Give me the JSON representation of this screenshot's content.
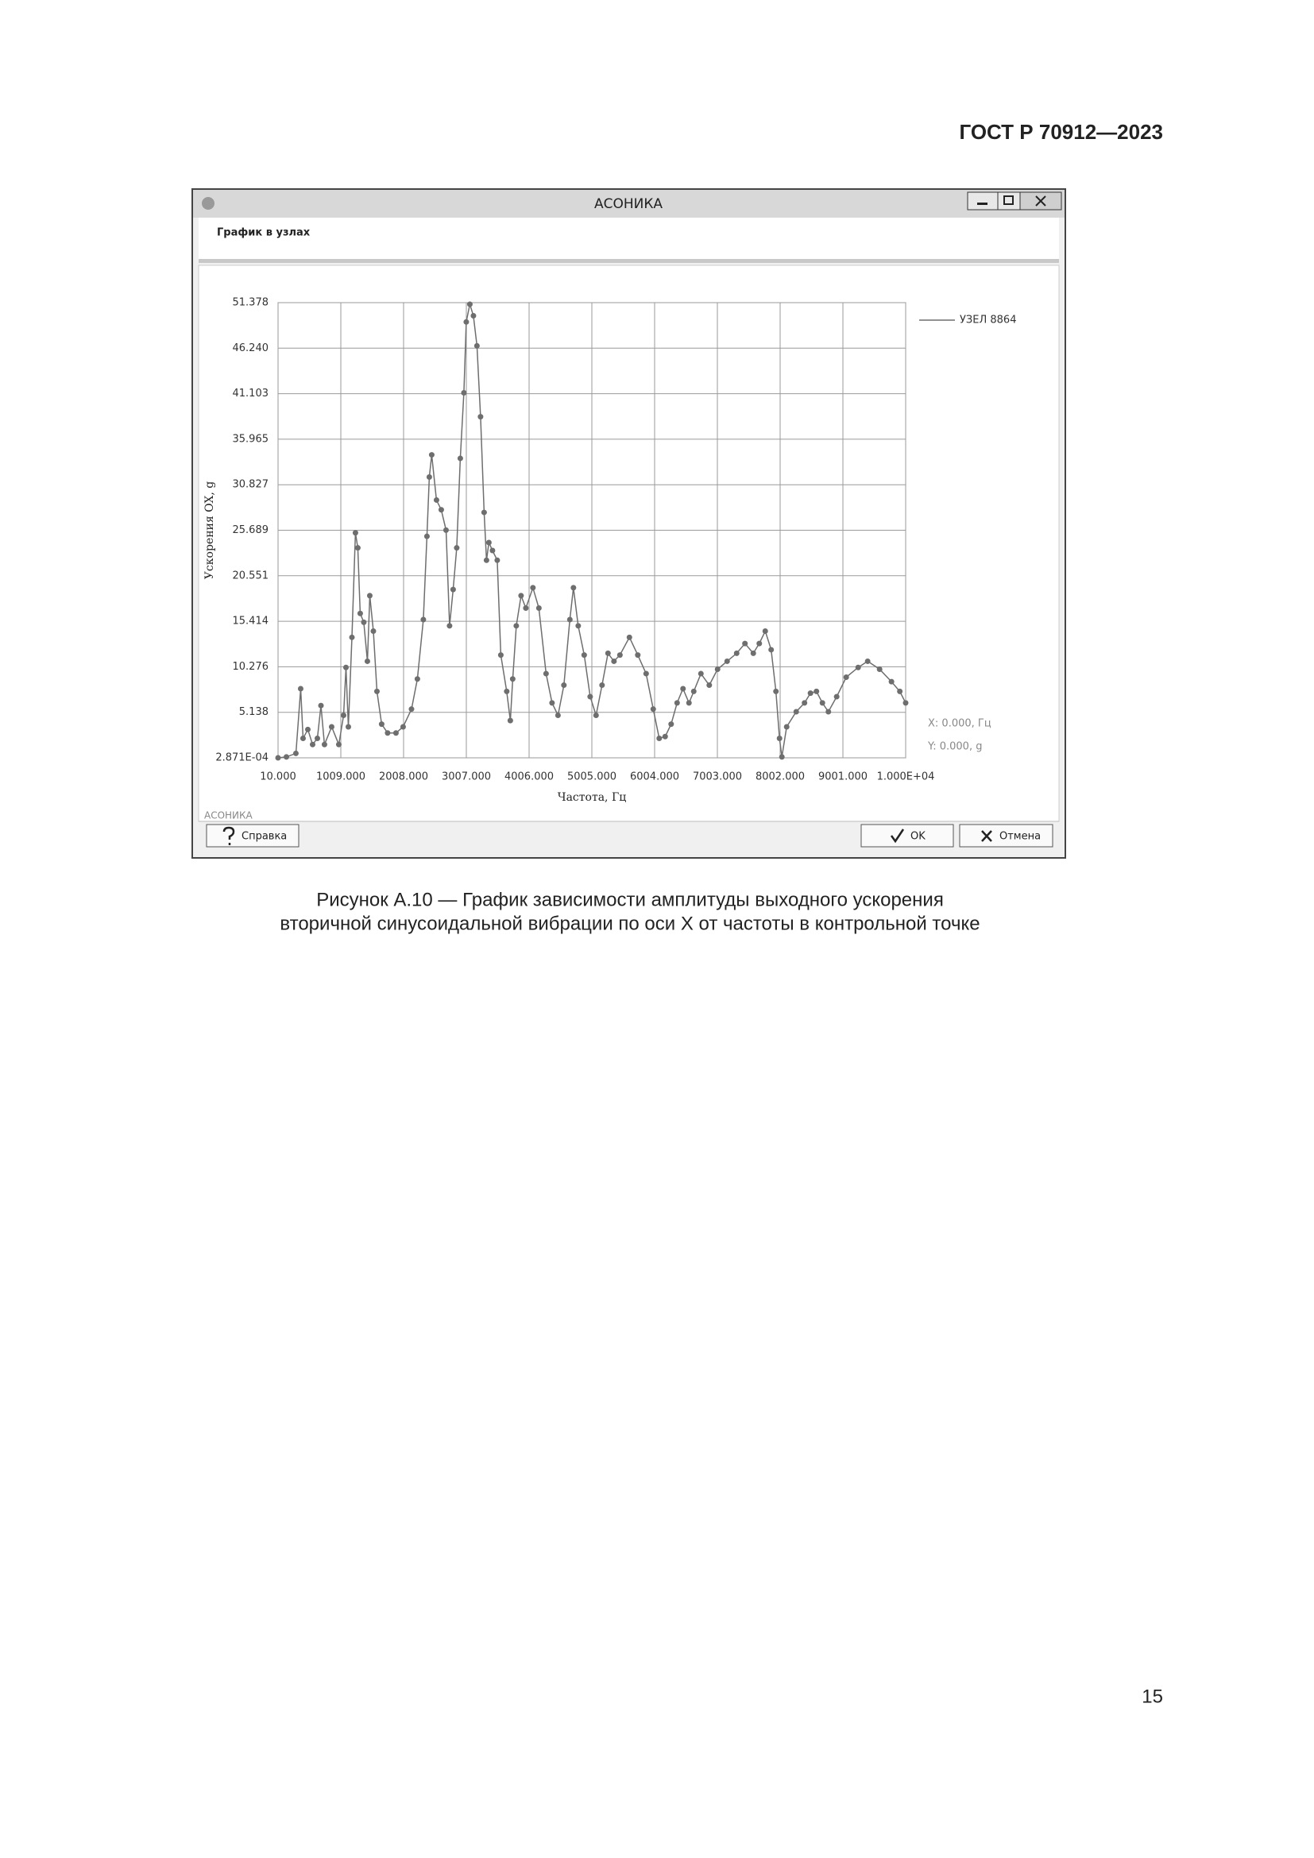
{
  "header": {
    "code": "ГОСТ Р 70912—2023"
  },
  "window": {
    "title": "АСОНИКА",
    "panel_title": "График в узлах",
    "status": "АСОНИКА",
    "buttons": {
      "help": "Справка",
      "ok": "OK",
      "cancel": "Отмена"
    },
    "cursor": {
      "x": "X: 0.000, Гц",
      "y": "Y: 0.000, g"
    }
  },
  "chart_data": {
    "type": "line",
    "x_label": "Частота, Гц",
    "y_label": "Ускорения OX, g",
    "xlim": [
      10,
      10000
    ],
    "ylim": [
      0.0002871,
      51.378
    ],
    "xticks": [
      {
        "value": 10,
        "label": "10.000"
      },
      {
        "value": 1009,
        "label": "1009.000"
      },
      {
        "value": 2008,
        "label": "2008.000"
      },
      {
        "value": 3007,
        "label": "3007.000"
      },
      {
        "value": 4006,
        "label": "4006.000"
      },
      {
        "value": 5005,
        "label": "5005.000"
      },
      {
        "value": 6004,
        "label": "6004.000"
      },
      {
        "value": 7003,
        "label": "7003.000"
      },
      {
        "value": 8002,
        "label": "8002.000"
      },
      {
        "value": 9001,
        "label": "9001.000"
      },
      {
        "value": 10000,
        "label": "1.000E+04"
      }
    ],
    "yticks": [
      {
        "value": 0.0002871,
        "label": "2.871E-04"
      },
      5.138,
      10.276,
      15.414,
      20.551,
      25.689,
      30.827,
      35.965,
      41.103,
      {
        "value": 46.24,
        "label": "46.240"
      },
      51.378
    ],
    "grid": true,
    "x": [
      10,
      143,
      294,
      370,
      408,
      484,
      560,
      636,
      693,
      749,
      863,
      977,
      1053,
      1091,
      1129,
      1186,
      1242,
      1280,
      1318,
      1375,
      1432,
      1470,
      1527,
      1584,
      1659,
      1754,
      1887,
      2001,
      2134,
      2228,
      2323,
      2380,
      2418,
      2456,
      2532,
      2608,
      2684,
      2740,
      2797,
      2854,
      2911,
      2968,
      3006,
      3063,
      3120,
      3176,
      3233,
      3290,
      3328,
      3366,
      3423,
      3499,
      3556,
      3650,
      3707,
      3745,
      3802,
      3878,
      3954,
      4067,
      4162,
      4276,
      4371,
      4466,
      4560,
      4655,
      4712,
      4788,
      4883,
      4978,
      5072,
      5167,
      5262,
      5357,
      5452,
      5603,
      5736,
      5869,
      5982,
      6077,
      6172,
      6267,
      6362,
      6456,
      6551,
      6627,
      6741,
      6874,
      7006,
      7158,
      7310,
      7442,
      7575,
      7670,
      7765,
      7859,
      7935,
      7992,
      8030,
      8106,
      8258,
      8390,
      8485,
      8580,
      8675,
      8770,
      8902,
      9054,
      9244,
      9395,
      9585,
      9774,
      9907,
      10000
    ],
    "series": [
      {
        "name": "УЗЕЛ 8864",
        "color": "#6e6e6e",
        "values": [
          0.0003,
          0.1,
          0.5,
          7.8,
          2.2,
          3.2,
          1.5,
          2.2,
          5.9,
          1.5,
          3.5,
          1.5,
          4.8,
          10.2,
          3.5,
          13.6,
          25.4,
          23.7,
          16.3,
          15.3,
          10.9,
          18.3,
          14.3,
          7.5,
          3.8,
          2.8,
          2.8,
          3.5,
          5.5,
          8.9,
          15.6,
          25.0,
          31.7,
          34.2,
          29.1,
          28.0,
          25.7,
          14.9,
          19.0,
          23.7,
          33.8,
          41.2,
          49.2,
          51.2,
          49.9,
          46.5,
          38.5,
          27.7,
          22.3,
          24.3,
          23.4,
          22.3,
          11.6,
          7.5,
          4.2,
          8.9,
          14.9,
          18.3,
          16.9,
          19.2,
          16.9,
          9.5,
          6.2,
          4.8,
          8.2,
          15.6,
          19.2,
          14.9,
          11.6,
          6.9,
          4.8,
          8.2,
          11.8,
          10.9,
          11.6,
          13.6,
          11.6,
          9.5,
          5.5,
          2.2,
          2.4,
          3.8,
          6.2,
          7.8,
          6.2,
          7.5,
          9.5,
          8.2,
          10.0,
          10.9,
          11.8,
          12.9,
          11.8,
          12.9,
          14.3,
          12.2,
          7.5,
          2.2,
          0.1,
          3.5,
          5.2,
          6.2,
          7.3,
          7.5,
          6.2,
          5.2,
          6.9,
          9.1,
          10.2,
          10.9,
          10.0,
          8.6,
          7.5,
          6.2
        ]
      }
    ]
  },
  "caption": {
    "line1": "Рисунок А.10 — График зависимости амплитуды выходного ускорения",
    "line2": "вторичной синусоидальной вибрации по оси X от частоты в контрольной точке"
  },
  "page_number": "15"
}
